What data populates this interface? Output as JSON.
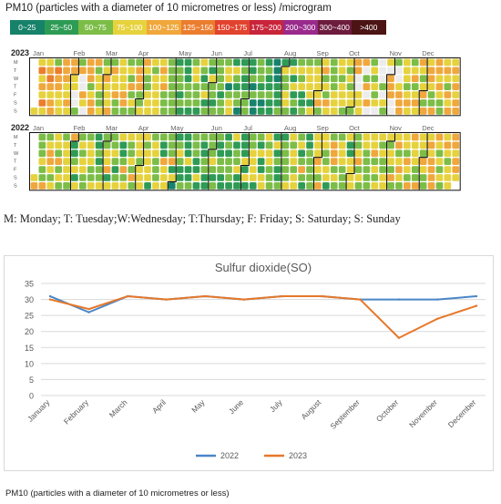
{
  "heatmap": {
    "title": "PM10 (particles with a diameter of 10 micrometres or less) /microgram",
    "legend": [
      {
        "label": "0~25",
        "color": "#17826a"
      },
      {
        "label": "25~50",
        "color": "#2e9b55"
      },
      {
        "label": "50~75",
        "color": "#7cbd47"
      },
      {
        "label": "75~100",
        "color": "#e6d23c"
      },
      {
        "label": "100~125",
        "color": "#f0a73c"
      },
      {
        "label": "125~150",
        "color": "#eb7d2e"
      },
      {
        "label": "150~175",
        "color": "#e2432e"
      },
      {
        "label": "175~200",
        "color": "#c8243a"
      },
      {
        "label": "200~300",
        "color": "#9a2a8c"
      },
      {
        "label": "300~400",
        "color": "#6e1c3e"
      },
      {
        "label": ">400",
        "color": "#4c1414"
      }
    ],
    "months": [
      "Jan",
      "Feb",
      "Mar",
      "Apr",
      "May",
      "Jun",
      "Jul",
      "Aug",
      "Sep",
      "Oct",
      "Nov",
      "Dec"
    ],
    "weekdays": [
      "M",
      "T",
      "W",
      "T",
      "F",
      "S",
      "S"
    ],
    "years": [
      "2023",
      "2022"
    ],
    "missing_color": "#ececec"
  },
  "day_key": "M: Monday; T: Tuesday;W:Wednesday; T:Thursday; F: Friday; S: Saturday; S: Sunday",
  "chart_data": [
    {
      "type": "heatmap",
      "title": "PM10 (particles with a diameter of 10 micrometres or less) /microgram",
      "rows": [
        "M",
        "T",
        "W",
        "T",
        "F",
        "S",
        "S"
      ],
      "panels": [
        "2023",
        "2022"
      ],
      "x_groups": [
        "Jan",
        "Feb",
        "Mar",
        "Apr",
        "May",
        "Jun",
        "Jul",
        "Aug",
        "Sep",
        "Oct",
        "Nov",
        "Dec"
      ],
      "color_bins": [
        "0~25",
        "25~50",
        "50~75",
        "75~100",
        "100~125",
        "125~150",
        "150~175",
        "175~200",
        "200~300",
        "300~400",
        ">400"
      ],
      "values_note": "daily PM10 category index per week column (approximate); -1 = no data"
    },
    {
      "type": "line",
      "title": "Sulfur dioxide(SO)",
      "categories": [
        "January",
        "February",
        "March",
        "April",
        "May",
        "June",
        "July",
        "August",
        "September",
        "October",
        "November",
        "December"
      ],
      "series": [
        {
          "name": "2022",
          "color": "#4a86c8",
          "values": [
            31,
            26,
            31,
            30,
            31,
            30,
            31,
            31,
            30,
            30,
            30,
            31
          ]
        },
        {
          "name": "2023",
          "color": "#e6782a",
          "values": [
            30,
            27,
            31,
            30,
            31,
            30,
            31,
            31,
            30,
            18,
            24,
            28
          ]
        }
      ],
      "ylim": [
        0,
        35
      ],
      "yticks": [
        0,
        5,
        10,
        15,
        20,
        25,
        30,
        35
      ],
      "grid": true,
      "legend": "bottom"
    }
  ],
  "bottom_caption": "PM10 (particles with a diameter of 10 micrometres or less)"
}
